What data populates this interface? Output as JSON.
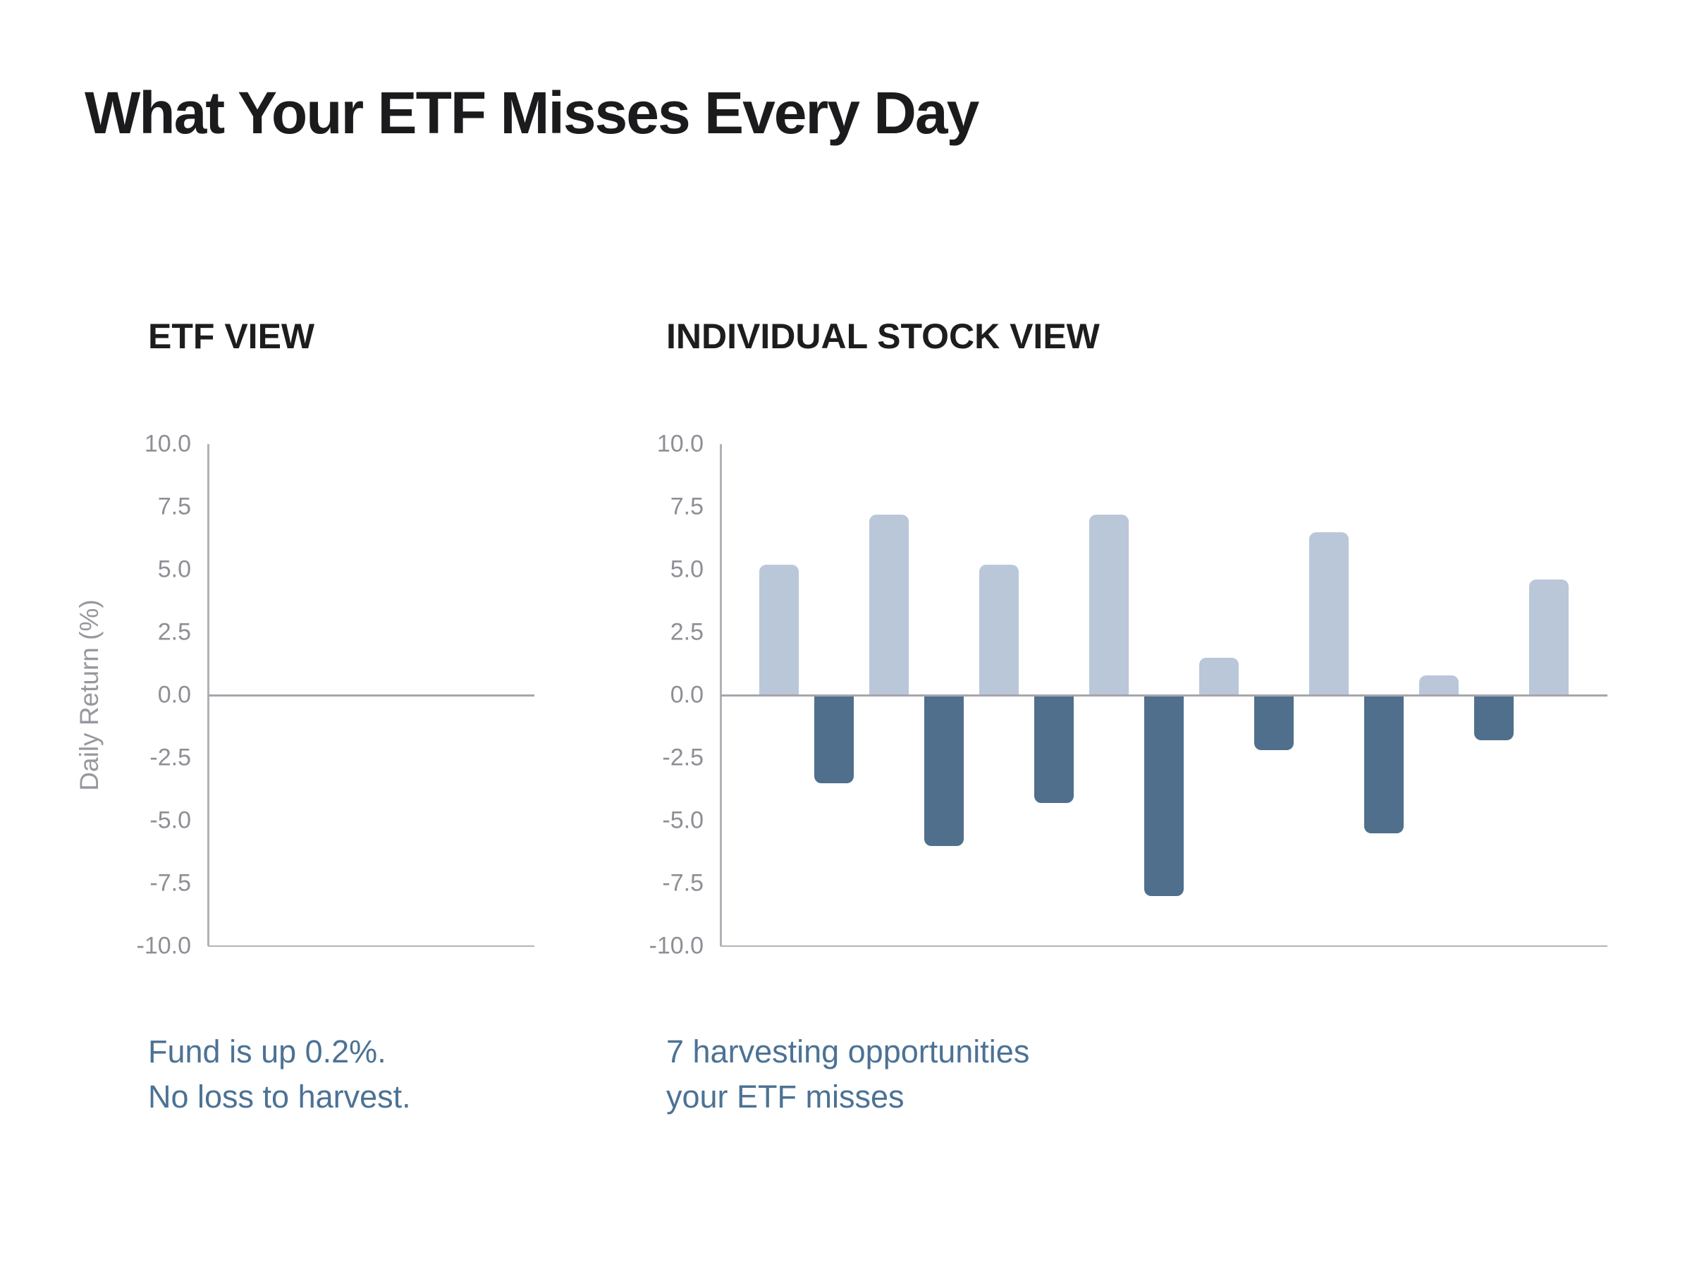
{
  "page": {
    "title": "What Your ETF Misses Every Day"
  },
  "panels": {
    "etf": {
      "header": "ETF VIEW",
      "caption_line1": "Fund is up 0.2%.",
      "caption_line2": "No loss to harvest."
    },
    "stock": {
      "header": "INDIVIDUAL STOCK VIEW",
      "caption_line1": "7 harvesting opportunities",
      "caption_line2": "your ETF misses"
    }
  },
  "colors": {
    "positive_bar": "#b9c7d9",
    "negative_bar": "#4f6f8d",
    "caption_text": "#4c7295",
    "axis_line": "#b1b1b7",
    "zero_line": "#a6a6ac",
    "tick_text": "#8e8e96",
    "title_text": "#1b1b1d"
  },
  "chart_data": [
    {
      "id": "etf",
      "type": "bar",
      "title": "ETF VIEW",
      "xlabel": "",
      "ylabel": "Daily Return (%)",
      "ylim": [
        -10,
        10
      ],
      "yticks": [
        "10.0",
        "7.5",
        "5.0",
        "2.5",
        "0.0",
        "-2.5",
        "-5.0",
        "-7.5",
        "-10.0"
      ],
      "values": [],
      "grid": false,
      "legend": false,
      "annotation": "Fund is up 0.2%. No loss to harvest."
    },
    {
      "id": "stock",
      "type": "bar",
      "title": "INDIVIDUAL STOCK VIEW",
      "xlabel": "",
      "ylabel": "",
      "ylim": [
        -10,
        10
      ],
      "yticks": [
        "10.0",
        "7.5",
        "5.0",
        "2.5",
        "0.0",
        "-2.5",
        "-5.0",
        "-7.5",
        "-10.0"
      ],
      "values": [
        5.2,
        -3.5,
        7.2,
        -6.0,
        5.2,
        -4.3,
        7.2,
        -8.0,
        1.5,
        -2.2,
        6.5,
        -5.5,
        0.8,
        -1.8,
        4.6
      ],
      "grid": false,
      "legend": false,
      "annotation": "7 harvesting opportunities your ETF misses"
    }
  ]
}
